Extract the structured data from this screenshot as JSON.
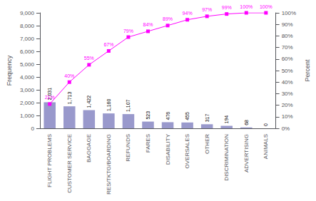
{
  "chart_data": {
    "type": "bar",
    "categories": [
      "FLIGHT PROBLEMS",
      "CUSTOMER SERVICE",
      "BAGGAGE",
      "RES/TKTG/BOARDING",
      "REFUNDS",
      "FARES",
      "DISABILITY",
      "OVERSALES",
      "OTHER",
      "DISCRIMINATION",
      "ADVERTISING",
      "ANIMALS"
    ],
    "ylabel": "Frequency",
    "y2label": "Percent",
    "ylim": [
      0,
      9000
    ],
    "yticks": [
      0,
      {
        "value": 1000,
        "label": "1,000"
      },
      {
        "value": 2000,
        "label": "2,000"
      },
      {
        "value": 3000,
        "label": "3,000"
      },
      {
        "value": 4000,
        "label": "4,000"
      },
      {
        "value": 5000,
        "label": "5,000"
      },
      {
        "value": 6000,
        "label": "6,000"
      },
      {
        "value": 7000,
        "label": "7,000"
      },
      {
        "value": 8000,
        "label": "8,000"
      },
      {
        "value": 9000,
        "label": "9,000"
      }
    ],
    "y2lim": [
      0,
      100
    ],
    "y2ticks": [
      {
        "value": 0,
        "label": "0%"
      },
      {
        "value": 10,
        "label": "10%"
      },
      {
        "value": 20,
        "label": "20%"
      },
      {
        "value": 30,
        "label": "30%"
      },
      {
        "value": 40,
        "label": "40%"
      },
      {
        "value": 50,
        "label": "50%"
      },
      {
        "value": 60,
        "label": "60%"
      },
      {
        "value": 70,
        "label": "70%"
      },
      {
        "value": 80,
        "label": "80%"
      },
      {
        "value": 90,
        "label": "90%"
      },
      {
        "value": 100,
        "label": "100%"
      }
    ],
    "grid": false,
    "series": [
      {
        "type": "bar",
        "color": "#9999cc",
        "values": [
          2031,
          1713,
          1422,
          1160,
          1107,
          523,
          476,
          455,
          317,
          194,
          68,
          0
        ],
        "value_labels": [
          "2,031",
          "1,713",
          "1,422",
          "1,160",
          "1,107",
          "523",
          "476",
          "455",
          "317",
          "194",
          "68",
          "0"
        ],
        "data_labels": true
      },
      {
        "type": "line",
        "axis": "y2",
        "color": "#ff00ff",
        "marker": "square",
        "values": [
          21,
          40,
          55,
          67,
          79,
          84,
          89,
          94,
          97,
          99,
          100,
          100
        ],
        "value_labels": [
          "21%",
          "40%",
          "55%",
          "67%",
          "79%",
          "84%",
          "89%",
          "94%",
          "97%",
          "99%",
          "100%",
          "100%"
        ],
        "data_labels": true
      }
    ]
  }
}
